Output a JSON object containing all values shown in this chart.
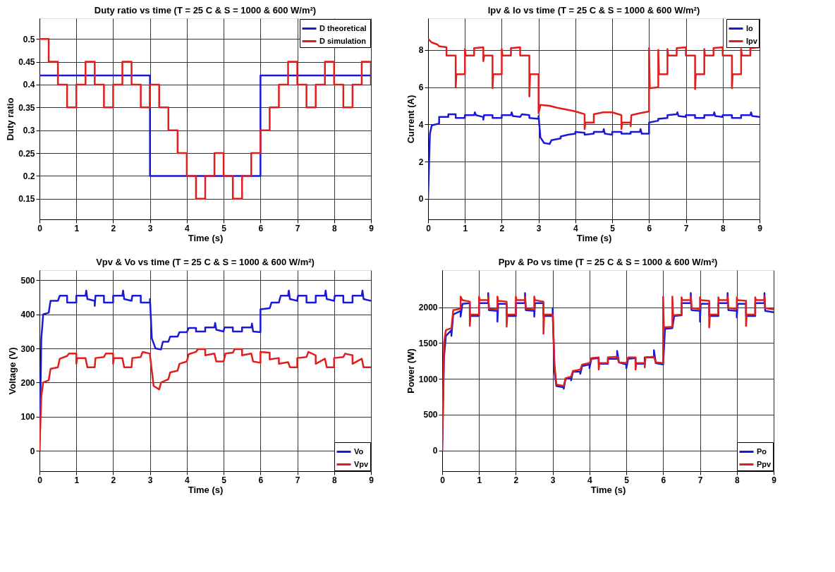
{
  "chart_data": [
    {
      "type": "step",
      "title": "Duty ratio vs time (T = 25 C & S = 1000 & 600 W/m²)",
      "xlabel": "Time (s)",
      "ylabel": "Duty ratio",
      "xlim": [
        0,
        9
      ],
      "xticks": [
        0,
        1,
        2,
        3,
        4,
        5,
        6,
        7,
        8,
        9
      ],
      "ylim": [
        0.105,
        0.545
      ],
      "yticks": [
        0.15,
        0.2,
        0.25,
        0.3,
        0.35,
        0.4,
        0.45,
        0.5
      ],
      "grid": true,
      "legend": "top right",
      "series": [
        {
          "name": "D  theoretical",
          "color": "#1a1ad6",
          "x": [
            0,
            3,
            6,
            9
          ],
          "values": [
            0.42,
            0.2,
            0.42,
            0.42
          ]
        },
        {
          "name": "D  simulation",
          "color": "#e01e1e",
          "x": [
            0,
            0.25,
            0.5,
            0.75,
            1,
            1.25,
            1.5,
            1.75,
            2,
            2.25,
            2.5,
            2.75,
            3,
            3.25,
            3.5,
            3.75,
            4,
            4.25,
            4.5,
            4.75,
            5,
            5.25,
            5.5,
            5.75,
            6,
            6.25,
            6.5,
            6.75,
            7,
            7.25,
            7.5,
            7.75,
            8,
            8.25,
            8.5,
            8.75,
            9
          ],
          "values": [
            0.5,
            0.45,
            0.4,
            0.35,
            0.4,
            0.45,
            0.4,
            0.35,
            0.4,
            0.45,
            0.4,
            0.35,
            0.4,
            0.35,
            0.3,
            0.25,
            0.2,
            0.15,
            0.2,
            0.25,
            0.2,
            0.15,
            0.2,
            0.25,
            0.3,
            0.35,
            0.4,
            0.45,
            0.4,
            0.35,
            0.4,
            0.45,
            0.4,
            0.35,
            0.4,
            0.45,
            0.4
          ]
        }
      ]
    },
    {
      "type": "line",
      "title": "Ipv & Io vs time (T = 25 C & S = 1000 & 600 W/m²)",
      "xlabel": "Time (s)",
      "ylabel": "Current (A)",
      "xlim": [
        0,
        9
      ],
      "xticks": [
        0,
        1,
        2,
        3,
        4,
        5,
        6,
        7,
        8,
        9
      ],
      "ylim": [
        -1.1,
        9.7
      ],
      "yticks": [
        0,
        2,
        4,
        6,
        8
      ],
      "grid": true,
      "legend": "top right",
      "series": [
        {
          "name": "Io",
          "color": "#1a1ad6",
          "x": [
            0,
            0.05,
            0.1,
            0.3,
            0.3,
            0.55,
            0.55,
            0.75,
            0.75,
            1.0,
            1.0,
            1.25,
            1.27,
            1.3,
            1.5,
            1.5,
            1.52,
            1.75,
            1.75,
            2.0,
            2.0,
            2.25,
            2.27,
            2.3,
            2.5,
            2.55,
            2.75,
            2.75,
            3.0,
            3.0,
            3.05,
            3.15,
            3.3,
            3.35,
            3.6,
            3.6,
            3.8,
            4.0,
            4.0,
            4.25,
            4.25,
            4.5,
            4.5,
            4.75,
            4.77,
            4.8,
            5.0,
            5.0,
            5.25,
            5.25,
            5.5,
            5.5,
            5.75,
            5.77,
            5.8,
            6.0,
            6.0,
            6.25,
            6.25,
            6.5,
            6.5,
            6.75,
            6.77,
            6.8,
            7.0,
            7.0,
            7.25,
            7.25,
            7.5,
            7.5,
            7.75,
            7.77,
            7.8,
            8.0,
            8.0,
            8.25,
            8.25,
            8.5,
            8.5,
            8.75,
            8.77,
            8.8,
            9.0
          ],
          "values": [
            0,
            3.5,
            3.95,
            4.05,
            4.4,
            4.4,
            4.55,
            4.55,
            4.35,
            4.35,
            4.5,
            4.5,
            4.65,
            4.5,
            4.4,
            4.25,
            4.5,
            4.5,
            4.35,
            4.35,
            4.5,
            4.5,
            4.65,
            4.45,
            4.4,
            4.55,
            4.5,
            4.35,
            4.3,
            4.45,
            3.3,
            3.0,
            2.95,
            3.15,
            3.25,
            3.35,
            3.45,
            3.5,
            3.6,
            3.55,
            3.45,
            3.5,
            3.6,
            3.6,
            3.75,
            3.5,
            3.45,
            3.6,
            3.6,
            3.5,
            3.5,
            3.6,
            3.6,
            3.75,
            3.5,
            3.5,
            4.1,
            4.2,
            4.3,
            4.35,
            4.5,
            4.55,
            4.65,
            4.45,
            4.4,
            4.5,
            4.5,
            4.35,
            4.35,
            4.5,
            4.5,
            4.65,
            4.45,
            4.4,
            4.5,
            4.5,
            4.35,
            4.35,
            4.5,
            4.5,
            4.65,
            4.45,
            4.4
          ]
        },
        {
          "name": "Ipv",
          "color": "#e01e1e",
          "x": [
            0,
            0.1,
            0.25,
            0.3,
            0.5,
            0.5,
            0.75,
            0.75,
            0.77,
            1.0,
            1.0,
            1.02,
            1.25,
            1.25,
            1.5,
            1.5,
            1.52,
            1.75,
            1.75,
            1.77,
            2.0,
            2.0,
            2.02,
            2.25,
            2.25,
            2.5,
            2.5,
            2.75,
            2.75,
            2.77,
            3.0,
            3.0,
            3.05,
            3.3,
            3.5,
            3.75,
            4.0,
            4.25,
            4.25,
            4.27,
            4.5,
            4.5,
            4.75,
            5.0,
            5.25,
            5.25,
            5.27,
            5.5,
            5.5,
            5.52,
            5.75,
            6.0,
            6.0,
            6.02,
            6.25,
            6.25,
            6.27,
            6.5,
            6.5,
            6.52,
            6.75,
            6.75,
            7.0,
            7.0,
            7.25,
            7.25,
            7.27,
            7.5,
            7.5,
            7.52,
            7.75,
            7.75,
            8.0,
            8.0,
            8.25,
            8.25,
            8.27,
            8.5,
            8.5,
            8.52,
            8.75,
            8.75,
            9.0
          ],
          "values": [
            8.6,
            8.4,
            8.3,
            8.2,
            8.15,
            7.7,
            7.7,
            6.0,
            6.7,
            6.7,
            8.05,
            7.7,
            7.7,
            8.1,
            8.15,
            7.4,
            7.7,
            7.7,
            5.95,
            6.7,
            6.7,
            8.05,
            7.7,
            7.7,
            8.1,
            8.15,
            7.7,
            7.7,
            5.5,
            6.7,
            6.7,
            4.6,
            5.05,
            5.0,
            4.9,
            4.8,
            4.7,
            4.55,
            3.75,
            4.1,
            4.1,
            4.55,
            4.65,
            4.65,
            4.5,
            3.75,
            4.1,
            4.1,
            3.9,
            4.5,
            4.6,
            4.7,
            8.1,
            5.95,
            6.0,
            8.0,
            6.7,
            6.7,
            8.05,
            7.7,
            7.7,
            8.1,
            8.15,
            7.7,
            7.7,
            5.9,
            6.7,
            6.7,
            8.05,
            7.7,
            7.7,
            8.1,
            8.15,
            7.7,
            7.7,
            5.95,
            6.7,
            6.7,
            8.05,
            7.7,
            7.7,
            8.1,
            8.15
          ]
        }
      ]
    },
    {
      "type": "line",
      "title": "Vpv & Vo vs time (T = 25 C & S = 1000 & 600 W/m²)",
      "xlabel": "Time (s)",
      "ylabel": "Voltage (V)",
      "xlim": [
        0,
        9
      ],
      "xticks": [
        0,
        1,
        2,
        3,
        4,
        5,
        6,
        7,
        8,
        9
      ],
      "ylim": [
        -60,
        530
      ],
      "yticks": [
        0,
        100,
        200,
        300,
        400,
        500
      ],
      "grid": true,
      "legend": "bottom right",
      "series": [
        {
          "name": "Vo",
          "color": "#1a1ad6",
          "x": [
            0,
            0.05,
            0.1,
            0.25,
            0.3,
            0.5,
            0.55,
            0.75,
            0.75,
            1.0,
            1.0,
            1.25,
            1.27,
            1.3,
            1.5,
            1.5,
            1.52,
            1.75,
            1.75,
            2.0,
            2.0,
            2.25,
            2.27,
            2.3,
            2.5,
            2.52,
            2.75,
            2.75,
            3.0,
            3.0,
            3.05,
            3.15,
            3.3,
            3.35,
            3.5,
            3.55,
            3.75,
            3.8,
            4.0,
            4.05,
            4.25,
            4.25,
            4.5,
            4.5,
            4.75,
            4.77,
            4.8,
            5.0,
            5.02,
            5.25,
            5.25,
            5.5,
            5.5,
            5.75,
            5.77,
            5.8,
            6.0,
            6.0,
            6.25,
            6.3,
            6.5,
            6.55,
            6.75,
            6.77,
            6.8,
            7.0,
            7.02,
            7.25,
            7.25,
            7.5,
            7.5,
            7.75,
            7.77,
            7.8,
            8.0,
            8.02,
            8.25,
            8.25,
            8.5,
            8.5,
            8.75,
            8.77,
            8.8,
            9.0
          ],
          "values": [
            0,
            330,
            400,
            405,
            440,
            440,
            455,
            455,
            435,
            435,
            455,
            455,
            470,
            445,
            440,
            425,
            455,
            455,
            435,
            435,
            455,
            455,
            470,
            445,
            440,
            455,
            455,
            435,
            435,
            445,
            330,
            300,
            297,
            320,
            320,
            335,
            335,
            348,
            348,
            360,
            360,
            350,
            350,
            362,
            362,
            375,
            355,
            350,
            362,
            362,
            350,
            350,
            362,
            362,
            373,
            350,
            348,
            415,
            418,
            435,
            435,
            455,
            455,
            470,
            445,
            440,
            455,
            455,
            435,
            435,
            455,
            455,
            470,
            445,
            440,
            455,
            455,
            435,
            435,
            455,
            455,
            470,
            445,
            440
          ]
        },
        {
          "name": "Vpv",
          "color": "#e01e1e",
          "x": [
            0,
            0.05,
            0.1,
            0.25,
            0.3,
            0.5,
            0.55,
            0.75,
            0.8,
            1.0,
            1.0,
            1.02,
            1.25,
            1.3,
            1.5,
            1.52,
            1.75,
            1.8,
            2.0,
            2.0,
            2.02,
            2.25,
            2.3,
            2.5,
            2.52,
            2.75,
            2.8,
            3.0,
            3.0,
            3.1,
            3.25,
            3.3,
            3.5,
            3.55,
            3.75,
            3.8,
            4.0,
            4.05,
            4.25,
            4.3,
            4.5,
            4.5,
            4.75,
            4.8,
            5.0,
            5.05,
            5.25,
            5.3,
            5.5,
            5.5,
            5.75,
            5.8,
            6.0,
            6.0,
            6.25,
            6.25,
            6.5,
            6.5,
            6.75,
            6.8,
            7.0,
            7.0,
            7.25,
            7.3,
            7.5,
            7.5,
            7.75,
            7.8,
            8.0,
            8.0,
            8.25,
            8.3,
            8.5,
            8.5,
            8.75,
            8.8,
            9.0
          ],
          "values": [
            0,
            160,
            200,
            207,
            240,
            245,
            270,
            278,
            285,
            285,
            255,
            272,
            272,
            245,
            245,
            272,
            275,
            285,
            285,
            255,
            272,
            272,
            245,
            245,
            272,
            275,
            290,
            285,
            280,
            190,
            180,
            200,
            210,
            230,
            235,
            255,
            262,
            283,
            290,
            298,
            298,
            280,
            285,
            262,
            262,
            285,
            288,
            298,
            298,
            280,
            285,
            262,
            258,
            290,
            288,
            268,
            272,
            255,
            260,
            245,
            245,
            272,
            275,
            290,
            280,
            255,
            270,
            245,
            245,
            272,
            275,
            285,
            280,
            255,
            270,
            245,
            245
          ]
        }
      ]
    },
    {
      "type": "line",
      "title": "Ppv & Po vs time (T = 25 C & S = 1000 & 600 W/m²)",
      "xlabel": "Time (s)",
      "ylabel": "Power (W)",
      "xlim": [
        0,
        9
      ],
      "xticks": [
        0,
        1,
        2,
        3,
        4,
        5,
        6,
        7,
        8,
        9
      ],
      "ylim": [
        -290,
        2520
      ],
      "yticks": [
        0,
        500,
        1000,
        1500,
        2000
      ],
      "grid": true,
      "legend": "bottom right",
      "series": [
        {
          "name": "Po",
          "color": "#1a1ad6",
          "x": [
            0,
            0.05,
            0.1,
            0.25,
            0.25,
            0.3,
            0.5,
            0.5,
            0.55,
            0.75,
            0.75,
            1.0,
            1.0,
            1.25,
            1.25,
            1.27,
            1.5,
            1.5,
            1.52,
            1.75,
            1.75,
            2.0,
            2.0,
            2.25,
            2.25,
            2.27,
            2.5,
            2.5,
            2.52,
            2.75,
            2.75,
            3.0,
            3.0,
            3.05,
            3.1,
            3.3,
            3.3,
            3.35,
            3.5,
            3.5,
            3.55,
            3.75,
            3.75,
            3.8,
            4.0,
            4.0,
            4.05,
            4.25,
            4.25,
            4.5,
            4.5,
            4.75,
            4.75,
            4.8,
            5.0,
            5.0,
            5.05,
            5.25,
            5.25,
            5.5,
            5.5,
            5.75,
            5.75,
            5.8,
            6.0,
            6.05,
            6.25,
            6.3,
            6.5,
            6.5,
            6.75,
            6.75,
            6.77,
            7.0,
            7.0,
            7.02,
            7.25,
            7.25,
            7.5,
            7.5,
            7.75,
            7.75,
            7.77,
            8.0,
            8.0,
            8.02,
            8.25,
            8.25,
            8.5,
            8.5,
            8.75,
            8.75,
            8.77,
            9.0
          ],
          "values": [
            0,
            1300,
            1600,
            1680,
            1600,
            1900,
            1950,
            1870,
            2050,
            2060,
            1880,
            1880,
            2060,
            2060,
            2200,
            1960,
            1950,
            1800,
            2050,
            2050,
            1880,
            1880,
            2060,
            2060,
            2200,
            1960,
            1950,
            1870,
            2060,
            2060,
            1880,
            1880,
            1990,
            1100,
            900,
            880,
            860,
            1000,
            1010,
            980,
            1100,
            1100,
            1070,
            1180,
            1200,
            1150,
            1280,
            1290,
            1210,
            1210,
            1280,
            1280,
            1390,
            1230,
            1200,
            1150,
            1280,
            1290,
            1210,
            1210,
            1300,
            1300,
            1400,
            1220,
            1200,
            1700,
            1710,
            1880,
            1890,
            2060,
            2060,
            2200,
            1960,
            1950,
            1800,
            2050,
            2050,
            1880,
            1880,
            2060,
            2060,
            2200,
            1960,
            1950,
            1860,
            2050,
            2050,
            1880,
            1880,
            2060,
            2060,
            2200,
            1950,
            1930
          ]
        },
        {
          "name": "Ppv",
          "color": "#e01e1e",
          "x": [
            0,
            0.05,
            0.1,
            0.25,
            0.3,
            0.5,
            0.5,
            0.55,
            0.75,
            0.75,
            0.77,
            1.0,
            1.0,
            1.02,
            1.25,
            1.25,
            1.27,
            1.5,
            1.5,
            1.52,
            1.75,
            1.75,
            1.77,
            2.0,
            2.0,
            2.02,
            2.25,
            2.25,
            2.27,
            2.5,
            2.5,
            2.52,
            2.75,
            2.75,
            2.77,
            3.0,
            3.05,
            3.1,
            3.3,
            3.35,
            3.5,
            3.55,
            3.75,
            3.8,
            4.0,
            4.05,
            4.25,
            4.25,
            4.27,
            4.5,
            4.5,
            4.75,
            4.8,
            5.0,
            5.05,
            5.25,
            5.25,
            5.27,
            5.5,
            5.5,
            5.52,
            5.75,
            5.8,
            6.0,
            6.0,
            6.02,
            6.25,
            6.25,
            6.27,
            6.5,
            6.5,
            6.52,
            6.75,
            6.75,
            6.77,
            7.0,
            7.0,
            7.02,
            7.25,
            7.25,
            7.27,
            7.5,
            7.5,
            7.52,
            7.75,
            7.75,
            7.77,
            8.0,
            8.0,
            8.02,
            8.25,
            8.25,
            8.27,
            8.5,
            8.5,
            8.52,
            8.75,
            8.75,
            8.77,
            9.0
          ],
          "values": [
            0,
            1500,
            1680,
            1710,
            1960,
            1980,
            2150,
            2100,
            2080,
            1740,
            1900,
            1900,
            2150,
            2100,
            2100,
            2150,
            1980,
            1970,
            2150,
            2090,
            2080,
            1730,
            1900,
            1900,
            2150,
            2100,
            2100,
            2150,
            1980,
            1970,
            2150,
            2100,
            2080,
            1630,
            1900,
            1900,
            1200,
            920,
            900,
            1010,
            1030,
            1110,
            1130,
            1200,
            1220,
            1290,
            1300,
            1130,
            1220,
            1220,
            1300,
            1310,
            1230,
            1220,
            1300,
            1300,
            1130,
            1220,
            1220,
            1160,
            1300,
            1310,
            1230,
            1220,
            2150,
            1720,
            1730,
            2150,
            1890,
            1900,
            2140,
            2100,
            2100,
            2150,
            1990,
            1980,
            2140,
            2100,
            2090,
            1720,
            1900,
            1900,
            2140,
            2100,
            2100,
            2150,
            1990,
            1980,
            2140,
            2100,
            2090,
            1740,
            1900,
            1900,
            2140,
            2100,
            2100,
            2150,
            1990,
            1970
          ]
        }
      ]
    }
  ]
}
